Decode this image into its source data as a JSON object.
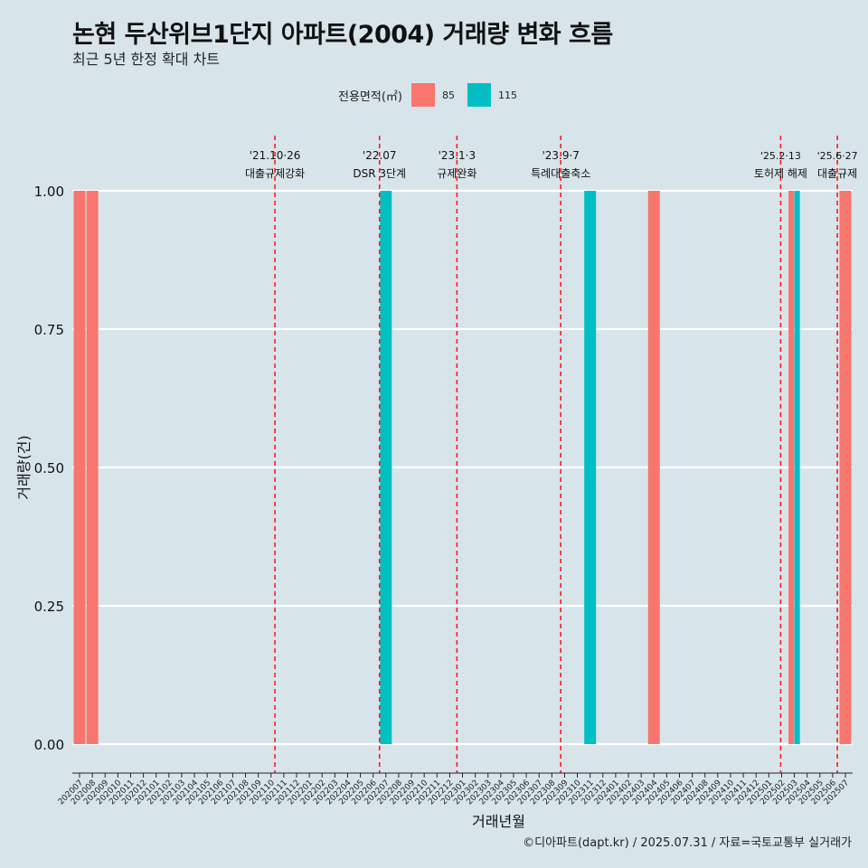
{
  "title": "논현 두산위브1단지 아파트(2004) 거래량 변화 흐름",
  "subtitle": "최근 5년 한정 확대 차트",
  "caption": "©디아파트(dapt.kr) / 2025.07.31 / 자료=국토교통부 실거래가",
  "legend": {
    "title": "전용면적(㎡)",
    "items": [
      {
        "label": "85",
        "color": "#F8766D"
      },
      {
        "label": "115",
        "color": "#00BFC4"
      }
    ]
  },
  "chart_data": {
    "type": "bar",
    "xlabel": "거래년월",
    "ylabel": "거래량(건)",
    "ylim": [
      0,
      1
    ],
    "yticks": [
      "0.00",
      "0.25",
      "0.50",
      "0.75",
      "1.00"
    ],
    "grid": true,
    "legend_position": "top",
    "categories": [
      "202007",
      "202008",
      "202009",
      "202010",
      "202011",
      "202012",
      "202101",
      "202102",
      "202103",
      "202104",
      "202105",
      "202106",
      "202107",
      "202108",
      "202109",
      "202110",
      "202111",
      "202112",
      "202201",
      "202202",
      "202203",
      "202204",
      "202205",
      "202206",
      "202207",
      "202208",
      "202209",
      "202210",
      "202211",
      "202212",
      "202301",
      "202302",
      "202303",
      "202304",
      "202305",
      "202306",
      "202307",
      "202308",
      "202309",
      "202310",
      "202311",
      "202312",
      "202401",
      "202402",
      "202403",
      "202404",
      "202405",
      "202406",
      "202407",
      "202408",
      "202409",
      "202410",
      "202411",
      "202412",
      "202501",
      "202502",
      "202503",
      "202504",
      "202505",
      "202506",
      "202507"
    ],
    "bars": [
      {
        "x": "202007",
        "series": "85",
        "value": 1
      },
      {
        "x": "202008",
        "series": "85",
        "value": 1
      },
      {
        "x": "202207",
        "series": "115",
        "value": 1
      },
      {
        "x": "202311",
        "series": "115",
        "value": 1
      },
      {
        "x": "202404",
        "series": "85",
        "value": 1
      },
      {
        "x": "202503",
        "series": "85",
        "value": 1
      },
      {
        "x": "202503",
        "series": "115",
        "value": 1
      },
      {
        "x": "202507",
        "series": "85",
        "value": 1
      }
    ],
    "annotations": [
      {
        "date": "2021-10-26",
        "line1": "'21.10·26",
        "line2": "대출규제강화"
      },
      {
        "date": "2022-07-01",
        "line1": "'22.07",
        "line2": "DSR 3단계"
      },
      {
        "date": "2023-01-03",
        "line1": "'23.1·3",
        "line2": "규제완화"
      },
      {
        "date": "2023-09-07",
        "line1": "'23.9·7",
        "line2": "특례대출축소"
      },
      {
        "date": "2025-02-13",
        "line1": "'25.2·13",
        "line2": "토허제 해제"
      },
      {
        "date": "2025-06-27",
        "line1": "'25.6·27",
        "line2": "대출규제"
      }
    ]
  }
}
